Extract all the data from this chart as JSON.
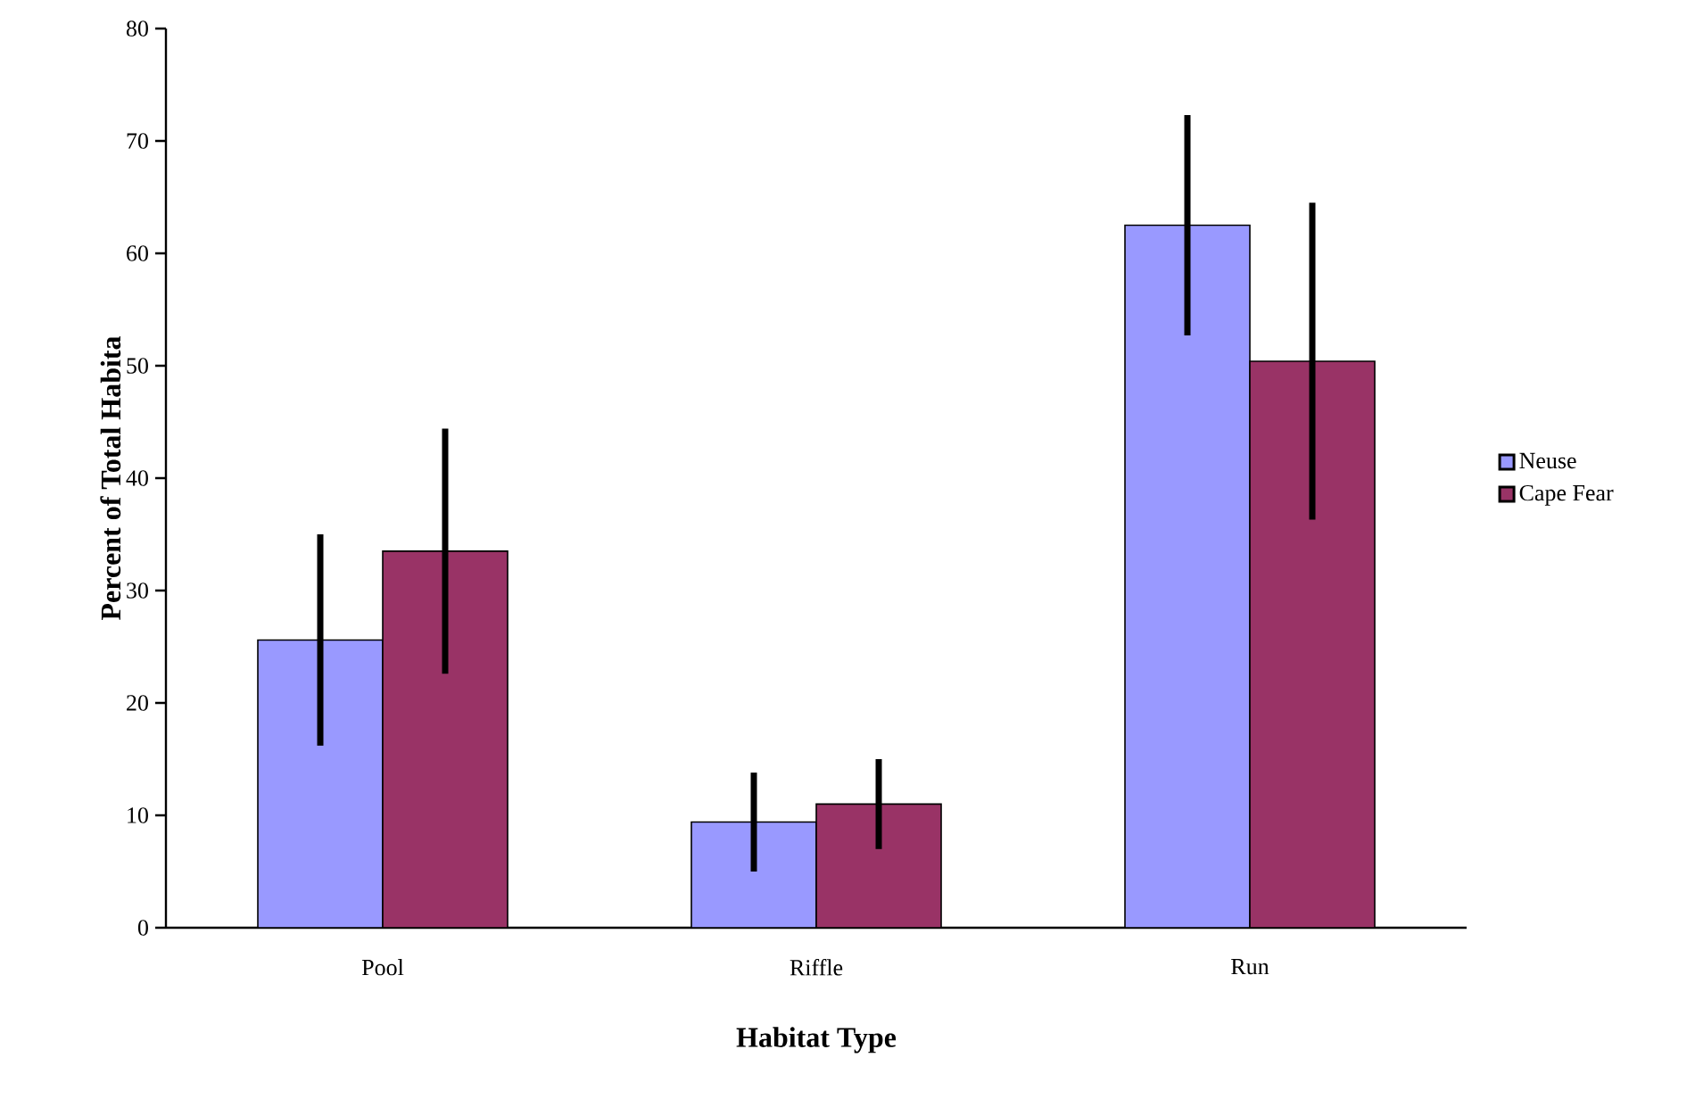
{
  "chart_data": {
    "type": "bar",
    "xlabel": "Habitat Type",
    "ylabel": "Percent of Total Habita",
    "categories": [
      "Pool",
      "Riffle",
      "Run"
    ],
    "series": [
      {
        "name": "Neuse",
        "color": "#9999ff",
        "values": [
          25.6,
          9.4,
          62.5
        ],
        "errors": [
          9.4,
          4.4,
          9.8
        ]
      },
      {
        "name": "Cape Fear",
        "color": "#993366",
        "values": [
          33.5,
          11.0,
          50.4
        ],
        "errors": [
          10.9,
          4.0,
          14.1
        ]
      }
    ],
    "ylim": [
      0,
      80
    ],
    "yticks": [
      0,
      10,
      20,
      30,
      40,
      50,
      60,
      70,
      80
    ],
    "legend": "right"
  }
}
